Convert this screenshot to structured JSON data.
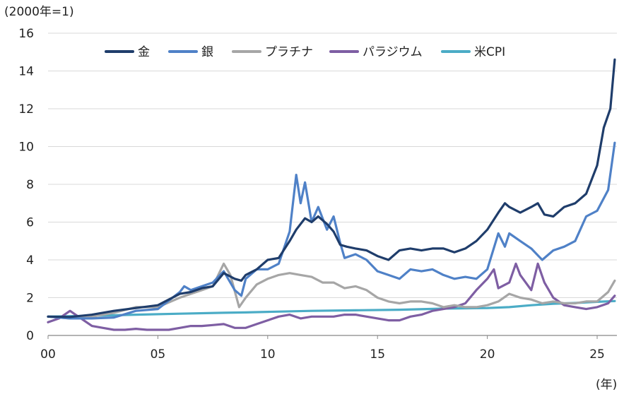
{
  "chart_data": {
    "type": "line",
    "title": "",
    "y_unit_label": "(2000年=1)",
    "x_unit_label": "(年)",
    "xlim": [
      0,
      25.9
    ],
    "ylim": [
      0,
      16
    ],
    "x_ticks": [
      0,
      5,
      10,
      15,
      20,
      25
    ],
    "x_tick_labels": [
      "00",
      "05",
      "10",
      "15",
      "20",
      "25"
    ],
    "y_ticks": [
      0,
      2,
      4,
      6,
      8,
      10,
      12,
      14,
      16
    ],
    "y_tick_labels": [
      "0",
      "2",
      "4",
      "6",
      "8",
      "10",
      "12",
      "14",
      "16"
    ],
    "grid": "horizontal",
    "legend_position": "top",
    "series": [
      {
        "name": "金",
        "color": "#1f3d6b",
        "points": [
          [
            0,
            1.0
          ],
          [
            1,
            0.98
          ],
          [
            2,
            1.1
          ],
          [
            3,
            1.3
          ],
          [
            4,
            1.45
          ],
          [
            5,
            1.6
          ],
          [
            6,
            2.2
          ],
          [
            6.5,
            2.3
          ],
          [
            7,
            2.5
          ],
          [
            7.5,
            2.6
          ],
          [
            8,
            3.3
          ],
          [
            8.5,
            3.0
          ],
          [
            8.8,
            2.9
          ],
          [
            9,
            3.2
          ],
          [
            9.5,
            3.5
          ],
          [
            10,
            4.0
          ],
          [
            10.5,
            4.1
          ],
          [
            11,
            5.0
          ],
          [
            11.3,
            5.6
          ],
          [
            11.7,
            6.2
          ],
          [
            12,
            6.0
          ],
          [
            12.3,
            6.3
          ],
          [
            12.7,
            5.9
          ],
          [
            13,
            5.5
          ],
          [
            13.3,
            4.8
          ],
          [
            13.6,
            4.7
          ],
          [
            14,
            4.6
          ],
          [
            14.5,
            4.5
          ],
          [
            15,
            4.2
          ],
          [
            15.5,
            4.0
          ],
          [
            16,
            4.5
          ],
          [
            16.5,
            4.6
          ],
          [
            17,
            4.5
          ],
          [
            17.5,
            4.6
          ],
          [
            18,
            4.6
          ],
          [
            18.5,
            4.4
          ],
          [
            19,
            4.6
          ],
          [
            19.5,
            5.0
          ],
          [
            20,
            5.6
          ],
          [
            20.5,
            6.5
          ],
          [
            20.8,
            7.0
          ],
          [
            21,
            6.8
          ],
          [
            21.5,
            6.5
          ],
          [
            22,
            6.8
          ],
          [
            22.3,
            7.0
          ],
          [
            22.6,
            6.4
          ],
          [
            23,
            6.3
          ],
          [
            23.5,
            6.8
          ],
          [
            24,
            7.0
          ],
          [
            24.5,
            7.5
          ],
          [
            25,
            9.0
          ],
          [
            25.3,
            11.0
          ],
          [
            25.6,
            12.0
          ],
          [
            25.8,
            14.6
          ]
        ]
      },
      {
        "name": "銀",
        "color": "#4f81c7",
        "points": [
          [
            0,
            1.0
          ],
          [
            1,
            0.9
          ],
          [
            2,
            0.9
          ],
          [
            3,
            0.95
          ],
          [
            4,
            1.3
          ],
          [
            5,
            1.4
          ],
          [
            6,
            2.3
          ],
          [
            6.2,
            2.6
          ],
          [
            6.5,
            2.4
          ],
          [
            7,
            2.6
          ],
          [
            7.5,
            2.8
          ],
          [
            8,
            3.4
          ],
          [
            8.5,
            2.4
          ],
          [
            8.8,
            2.1
          ],
          [
            9,
            3.0
          ],
          [
            9.5,
            3.5
          ],
          [
            10,
            3.5
          ],
          [
            10.5,
            3.8
          ],
          [
            11,
            5.5
          ],
          [
            11.3,
            8.5
          ],
          [
            11.5,
            7.0
          ],
          [
            11.7,
            8.1
          ],
          [
            12,
            6.0
          ],
          [
            12.3,
            6.8
          ],
          [
            12.7,
            5.6
          ],
          [
            13,
            6.3
          ],
          [
            13.3,
            4.9
          ],
          [
            13.5,
            4.1
          ],
          [
            14,
            4.3
          ],
          [
            14.5,
            4.0
          ],
          [
            15,
            3.4
          ],
          [
            15.5,
            3.2
          ],
          [
            16,
            3.0
          ],
          [
            16.5,
            3.5
          ],
          [
            17,
            3.4
          ],
          [
            17.5,
            3.5
          ],
          [
            18,
            3.2
          ],
          [
            18.5,
            3.0
          ],
          [
            19,
            3.1
          ],
          [
            19.5,
            3.0
          ],
          [
            20,
            3.5
          ],
          [
            20.5,
            5.4
          ],
          [
            20.8,
            4.7
          ],
          [
            21,
            5.4
          ],
          [
            21.5,
            5.0
          ],
          [
            22,
            4.6
          ],
          [
            22.5,
            4.0
          ],
          [
            23,
            4.5
          ],
          [
            23.5,
            4.7
          ],
          [
            24,
            5.0
          ],
          [
            24.5,
            6.3
          ],
          [
            25,
            6.6
          ],
          [
            25.5,
            7.7
          ],
          [
            25.8,
            10.2
          ]
        ]
      },
      {
        "name": "プラチナ",
        "color": "#a6a6a6",
        "points": [
          [
            0,
            1.0
          ],
          [
            1,
            0.9
          ],
          [
            2,
            1.0
          ],
          [
            3,
            1.2
          ],
          [
            4,
            1.5
          ],
          [
            5,
            1.5
          ],
          [
            6,
            2.0
          ],
          [
            6.5,
            2.2
          ],
          [
            7,
            2.4
          ],
          [
            7.5,
            2.6
          ],
          [
            8,
            3.8
          ],
          [
            8.3,
            3.2
          ],
          [
            8.7,
            1.5
          ],
          [
            9,
            2.0
          ],
          [
            9.5,
            2.7
          ],
          [
            10,
            3.0
          ],
          [
            10.5,
            3.2
          ],
          [
            11,
            3.3
          ],
          [
            11.5,
            3.2
          ],
          [
            12,
            3.1
          ],
          [
            12.5,
            2.8
          ],
          [
            13,
            2.8
          ],
          [
            13.5,
            2.5
          ],
          [
            14,
            2.6
          ],
          [
            14.5,
            2.4
          ],
          [
            15,
            2.0
          ],
          [
            15.5,
            1.8
          ],
          [
            16,
            1.7
          ],
          [
            16.5,
            1.8
          ],
          [
            17,
            1.8
          ],
          [
            17.5,
            1.7
          ],
          [
            18,
            1.5
          ],
          [
            18.5,
            1.6
          ],
          [
            19,
            1.5
          ],
          [
            19.5,
            1.5
          ],
          [
            20,
            1.6
          ],
          [
            20.5,
            1.8
          ],
          [
            21,
            2.2
          ],
          [
            21.5,
            2.0
          ],
          [
            22,
            1.9
          ],
          [
            22.5,
            1.7
          ],
          [
            23,
            1.8
          ],
          [
            23.5,
            1.7
          ],
          [
            24,
            1.7
          ],
          [
            24.5,
            1.8
          ],
          [
            25,
            1.8
          ],
          [
            25.5,
            2.3
          ],
          [
            25.8,
            2.9
          ]
        ]
      },
      {
        "name": "パラジウム",
        "color": "#7e5ea3",
        "points": [
          [
            0,
            0.7
          ],
          [
            0.5,
            0.9
          ],
          [
            1,
            1.3
          ],
          [
            1.5,
            0.9
          ],
          [
            2,
            0.5
          ],
          [
            2.5,
            0.4
          ],
          [
            3,
            0.3
          ],
          [
            3.5,
            0.3
          ],
          [
            4,
            0.35
          ],
          [
            4.5,
            0.3
          ],
          [
            5,
            0.3
          ],
          [
            5.5,
            0.3
          ],
          [
            6,
            0.4
          ],
          [
            6.5,
            0.5
          ],
          [
            7,
            0.5
          ],
          [
            7.5,
            0.55
          ],
          [
            8,
            0.6
          ],
          [
            8.5,
            0.4
          ],
          [
            9,
            0.4
          ],
          [
            9.5,
            0.6
          ],
          [
            10,
            0.8
          ],
          [
            10.5,
            1.0
          ],
          [
            11,
            1.1
          ],
          [
            11.5,
            0.9
          ],
          [
            12,
            1.0
          ],
          [
            12.5,
            1.0
          ],
          [
            13,
            1.0
          ],
          [
            13.5,
            1.1
          ],
          [
            14,
            1.1
          ],
          [
            14.5,
            1.0
          ],
          [
            15,
            0.9
          ],
          [
            15.5,
            0.8
          ],
          [
            16,
            0.8
          ],
          [
            16.5,
            1.0
          ],
          [
            17,
            1.1
          ],
          [
            17.5,
            1.3
          ],
          [
            18,
            1.4
          ],
          [
            18.5,
            1.5
          ],
          [
            19,
            1.7
          ],
          [
            19.5,
            2.4
          ],
          [
            20,
            3.0
          ],
          [
            20.3,
            3.5
          ],
          [
            20.5,
            2.5
          ],
          [
            21,
            2.8
          ],
          [
            21.3,
            3.8
          ],
          [
            21.5,
            3.2
          ],
          [
            22,
            2.4
          ],
          [
            22.3,
            3.8
          ],
          [
            22.6,
            2.8
          ],
          [
            23,
            2.0
          ],
          [
            23.5,
            1.6
          ],
          [
            24,
            1.5
          ],
          [
            24.5,
            1.4
          ],
          [
            25,
            1.5
          ],
          [
            25.5,
            1.7
          ],
          [
            25.8,
            2.1
          ]
        ]
      },
      {
        "name": "米CPI",
        "color": "#4bacc6",
        "points": [
          [
            0,
            1.0
          ],
          [
            2,
            1.04
          ],
          [
            4,
            1.1
          ],
          [
            6,
            1.15
          ],
          [
            8,
            1.2
          ],
          [
            9,
            1.22
          ],
          [
            10,
            1.25
          ],
          [
            12,
            1.3
          ],
          [
            14,
            1.33
          ],
          [
            16,
            1.36
          ],
          [
            18,
            1.42
          ],
          [
            20,
            1.45
          ],
          [
            21,
            1.5
          ],
          [
            22,
            1.6
          ],
          [
            23,
            1.68
          ],
          [
            24,
            1.72
          ],
          [
            25,
            1.78
          ],
          [
            25.8,
            1.82
          ]
        ]
      }
    ]
  }
}
